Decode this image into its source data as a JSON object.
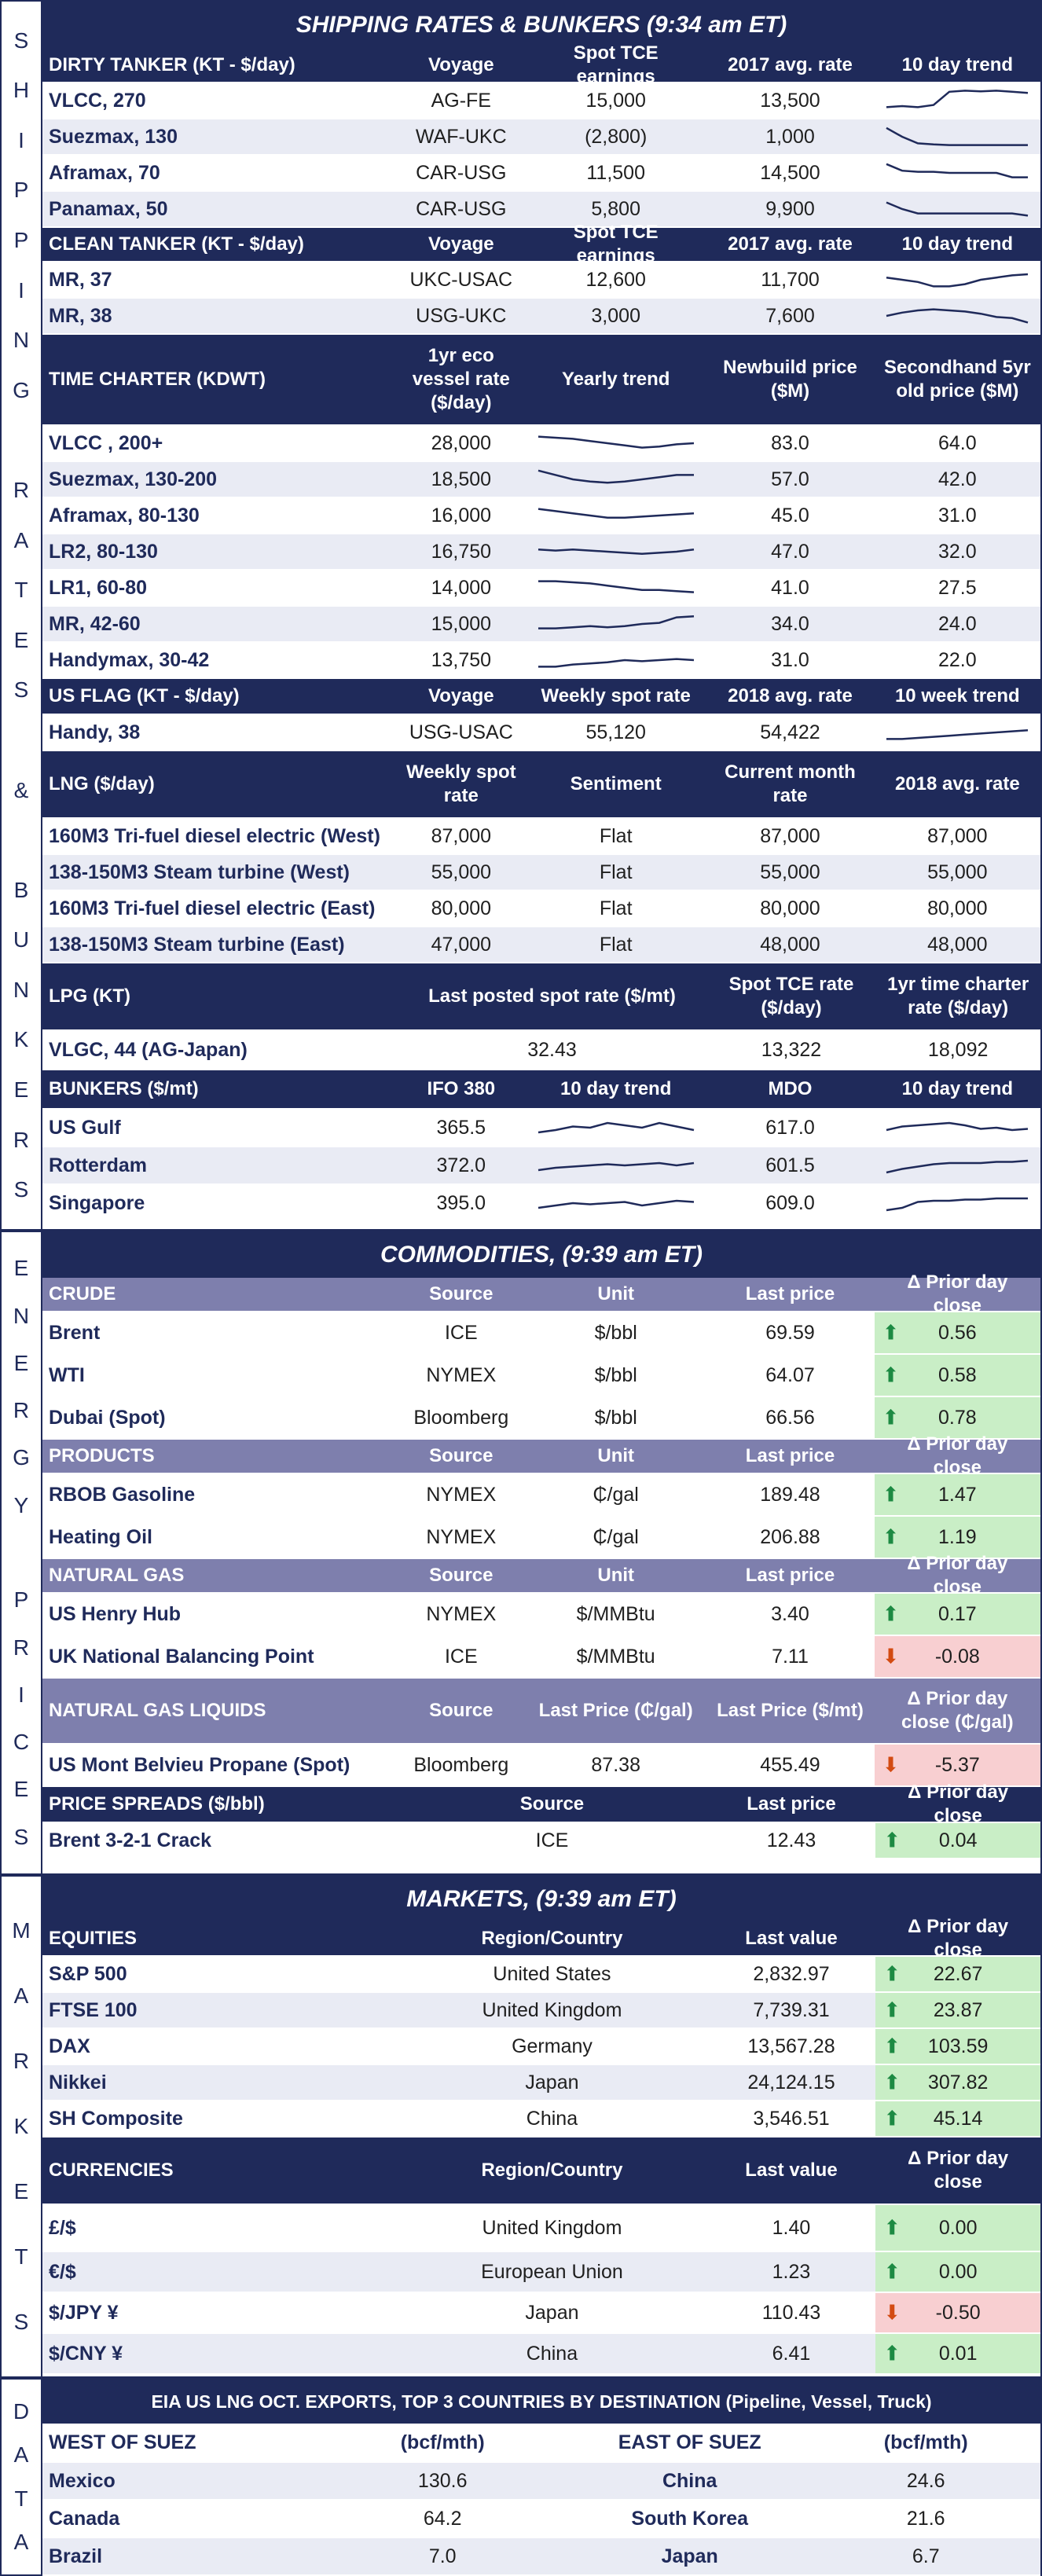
{
  "shipping": {
    "title": "SHIPPING RATES & BUNKERS (9:34 am ET)",
    "side_label": [
      "S",
      "H",
      "I",
      "P",
      "P",
      "I",
      "N",
      "G",
      "",
      "R",
      "A",
      "T",
      "E",
      "S",
      "",
      "&",
      "",
      "B",
      "U",
      "N",
      "K",
      "E",
      "R",
      "S"
    ],
    "dirty": {
      "header": [
        "DIRTY TANKER (KT - $/day)",
        "Voyage",
        "Spot TCE earnings",
        "2017 avg. rate",
        "10 day trend"
      ],
      "rows": [
        {
          "name": "VLCC, 270",
          "voyage": "AG-FE",
          "spot": "15,000",
          "avg": "13,500",
          "trend": [
            0.2,
            0.25,
            0.2,
            0.3,
            0.9,
            0.95,
            0.92,
            0.95,
            0.9,
            0.85
          ]
        },
        {
          "name": "Suezmax, 130",
          "voyage": "WAF-UKC",
          "spot": "(2,800)",
          "avg": "1,000",
          "trend": [
            0.9,
            0.5,
            0.2,
            0.15,
            0.12,
            0.12,
            0.12,
            0.12,
            0.12,
            0.12
          ]
        },
        {
          "name": "Aframax, 70",
          "voyage": "CAR-USG",
          "spot": "11,500",
          "avg": "14,500",
          "trend": [
            0.9,
            0.6,
            0.55,
            0.55,
            0.5,
            0.5,
            0.5,
            0.5,
            0.3,
            0.3
          ]
        },
        {
          "name": "Panamax, 50",
          "voyage": "CAR-USG",
          "spot": "5,800",
          "avg": "9,900",
          "trend": [
            0.8,
            0.5,
            0.3,
            0.3,
            0.3,
            0.3,
            0.3,
            0.3,
            0.3,
            0.2
          ]
        }
      ]
    },
    "clean": {
      "header": [
        "CLEAN TANKER (KT - $/day)",
        "Voyage",
        "Spot TCE earnings",
        "2017 avg. rate",
        "10 day trend"
      ],
      "rows": [
        {
          "name": "MR, 37",
          "voyage": "UKC-USAC",
          "spot": "12,600",
          "avg": "11,700",
          "trend": [
            0.6,
            0.5,
            0.4,
            0.2,
            0.2,
            0.3,
            0.5,
            0.6,
            0.7,
            0.75
          ]
        },
        {
          "name": "MR, 38",
          "voyage": "USG-UKC",
          "spot": "3,000",
          "avg": "7,600",
          "trend": [
            0.5,
            0.65,
            0.75,
            0.8,
            0.75,
            0.7,
            0.6,
            0.45,
            0.4,
            0.2
          ]
        }
      ]
    },
    "timecharter": {
      "header": [
        "TIME CHARTER (KDWT)",
        "1yr eco vessel rate ($/day)",
        "Yearly trend",
        "Newbuild price ($M)",
        "Secondhand 5yr old price ($M)"
      ],
      "rows": [
        {
          "name": "VLCC , 200+",
          "rate": "28,000",
          "newbuild": "83.0",
          "secondhand": "64.0",
          "trend": [
            0.8,
            0.75,
            0.7,
            0.6,
            0.5,
            0.4,
            0.3,
            0.35,
            0.45,
            0.5
          ]
        },
        {
          "name": "Suezmax, 130-200",
          "rate": "18,500",
          "newbuild": "57.0",
          "secondhand": "42.0",
          "trend": [
            0.9,
            0.7,
            0.5,
            0.4,
            0.35,
            0.4,
            0.5,
            0.6,
            0.7,
            0.7
          ]
        },
        {
          "name": "Aframax, 80-130",
          "rate": "16,000",
          "newbuild": "45.0",
          "secondhand": "31.0",
          "trend": [
            0.8,
            0.7,
            0.6,
            0.5,
            0.4,
            0.4,
            0.45,
            0.5,
            0.55,
            0.6
          ]
        },
        {
          "name": "LR2, 80-130",
          "rate": "16,750",
          "newbuild": "47.0",
          "secondhand": "32.0",
          "trend": [
            0.6,
            0.55,
            0.6,
            0.55,
            0.5,
            0.45,
            0.4,
            0.45,
            0.5,
            0.6
          ]
        },
        {
          "name": "LR1, 60-80",
          "rate": "14,000",
          "newbuild": "41.0",
          "secondhand": "27.5",
          "trend": [
            0.8,
            0.8,
            0.75,
            0.7,
            0.6,
            0.5,
            0.4,
            0.4,
            0.35,
            0.3
          ]
        },
        {
          "name": "MR, 42-60",
          "rate": "15,000",
          "newbuild": "34.0",
          "secondhand": "24.0",
          "trend": [
            0.3,
            0.3,
            0.35,
            0.4,
            0.35,
            0.4,
            0.5,
            0.55,
            0.8,
            0.85
          ]
        },
        {
          "name": "Handymax, 30-42",
          "rate": "13,750",
          "newbuild": "31.0",
          "secondhand": "22.0",
          "trend": [
            0.2,
            0.2,
            0.3,
            0.35,
            0.4,
            0.5,
            0.45,
            0.5,
            0.55,
            0.5
          ]
        }
      ]
    },
    "usflag": {
      "header": [
        "US FLAG (KT - $/day)",
        "Voyage",
        "Weekly spot rate",
        "2018 avg. rate",
        "10 week trend"
      ],
      "rows": [
        {
          "name": "Handy, 38",
          "voyage": "USG-USAC",
          "spot": "55,120",
          "avg": "54,422",
          "trend": [
            0.2,
            0.2,
            0.25,
            0.3,
            0.35,
            0.4,
            0.45,
            0.5,
            0.55,
            0.6
          ]
        }
      ]
    },
    "lng": {
      "header": [
        "LNG ($/day)",
        "Weekly spot rate",
        "Sentiment",
        "Current month rate",
        "2018 avg. rate"
      ],
      "rows": [
        {
          "name": "160M3 Tri-fuel diesel electric (West)",
          "spot": "87,000",
          "sentiment": "Flat",
          "current": "87,000",
          "avg": "87,000"
        },
        {
          "name": "138-150M3 Steam turbine (West)",
          "spot": "55,000",
          "sentiment": "Flat",
          "current": "55,000",
          "avg": "55,000"
        },
        {
          "name": "160M3 Tri-fuel diesel electric (East)",
          "spot": "80,000",
          "sentiment": "Flat",
          "current": "80,000",
          "avg": "80,000"
        },
        {
          "name": "138-150M3 Steam turbine (East)",
          "spot": "47,000",
          "sentiment": "Flat",
          "current": "48,000",
          "avg": "48,000"
        }
      ]
    },
    "lpg": {
      "header": [
        "LPG (KT)",
        "Last posted spot rate ($/mt)",
        "Spot TCE rate ($/day)",
        "1yr time charter rate ($/day)"
      ],
      "rows": [
        {
          "name": "VLGC, 44 (AG-Japan)",
          "spot": "32.43",
          "tce": "13,322",
          "tc": "18,092"
        }
      ]
    },
    "bunkers": {
      "header": [
        "BUNKERS ($/mt)",
        "IFO 380",
        "10 day trend",
        "MDO",
        "10 day trend"
      ],
      "rows": [
        {
          "name": "US Gulf",
          "ifo": "365.5",
          "mdo": "617.0",
          "trend1": [
            0.3,
            0.4,
            0.55,
            0.5,
            0.7,
            0.6,
            0.5,
            0.7,
            0.55,
            0.4
          ],
          "trend2": [
            0.4,
            0.55,
            0.6,
            0.65,
            0.7,
            0.6,
            0.45,
            0.5,
            0.4,
            0.45
          ]
        },
        {
          "name": "Rotterdam",
          "ifo": "372.0",
          "mdo": "601.5",
          "trend1": [
            0.3,
            0.4,
            0.45,
            0.5,
            0.55,
            0.5,
            0.55,
            0.6,
            0.5,
            0.6
          ],
          "trend2": [
            0.2,
            0.35,
            0.45,
            0.55,
            0.6,
            0.6,
            0.6,
            0.65,
            0.65,
            0.7
          ]
        },
        {
          "name": "Singapore",
          "ifo": "395.0",
          "mdo": "609.0",
          "trend1": [
            0.3,
            0.4,
            0.5,
            0.45,
            0.5,
            0.55,
            0.4,
            0.5,
            0.6,
            0.55
          ],
          "trend2": [
            0.2,
            0.3,
            0.55,
            0.6,
            0.6,
            0.65,
            0.65,
            0.7,
            0.7,
            0.7
          ]
        }
      ]
    }
  },
  "commodities": {
    "title": "COMMODITIES, (9:39 am ET)",
    "side_label": [
      "E",
      "N",
      "E",
      "R",
      "G",
      "Y",
      "",
      "P",
      "R",
      "I",
      "C",
      "E",
      "S"
    ],
    "crude": {
      "header": [
        "CRUDE",
        "Source",
        "Unit",
        "Last price",
        "Δ Prior day close"
      ],
      "rows": [
        {
          "name": "Brent",
          "source": "ICE",
          "unit": "$/bbl",
          "price": "69.59",
          "change": "0.56",
          "dir": "up"
        },
        {
          "name": "WTI",
          "source": "NYMEX",
          "unit": "$/bbl",
          "price": "64.07",
          "change": "0.58",
          "dir": "up"
        },
        {
          "name": "Dubai (Spot)",
          "source": "Bloomberg",
          "unit": "$/bbl",
          "price": "66.56",
          "change": "0.78",
          "dir": "up"
        }
      ]
    },
    "products": {
      "header": [
        "PRODUCTS",
        "Source",
        "Unit",
        "Last price",
        "Δ Prior day close"
      ],
      "rows": [
        {
          "name": "RBOB Gasoline",
          "source": "NYMEX",
          "unit": "₵/gal",
          "price": "189.48",
          "change": "1.47",
          "dir": "up"
        },
        {
          "name": "Heating Oil",
          "source": "NYMEX",
          "unit": "₵/gal",
          "price": "206.88",
          "change": "1.19",
          "dir": "up"
        }
      ]
    },
    "natgas": {
      "header": [
        "NATURAL GAS",
        "Source",
        "Unit",
        "Last price",
        "Δ Prior day close"
      ],
      "rows": [
        {
          "name": "US Henry Hub",
          "source": "NYMEX",
          "unit": "$/MMBtu",
          "price": "3.40",
          "change": "0.17",
          "dir": "up"
        },
        {
          "name": "UK National Balancing Point",
          "source": "ICE",
          "unit": "$/MMBtu",
          "price": "7.11",
          "change": "-0.08",
          "dir": "dn"
        }
      ]
    },
    "ngl": {
      "header": [
        "NATURAL GAS LIQUIDS",
        "Source",
        "Last Price (₵/gal)",
        "Last Price ($/mt)",
        "Δ Prior day close (₵/gal)"
      ],
      "rows": [
        {
          "name": "US Mont Belvieu Propane (Spot)",
          "source": "Bloomberg",
          "price1": "87.38",
          "price2": "455.49",
          "change": "-5.37",
          "dir": "dn"
        }
      ]
    },
    "spreads": {
      "header": [
        "PRICE SPREADS ($/bbl)",
        "Source",
        "Last price",
        "Δ Prior day close"
      ],
      "rows": [
        {
          "name": "Brent 3-2-1 Crack",
          "source": "ICE",
          "price": "12.43",
          "change": "0.04",
          "dir": "up"
        }
      ]
    }
  },
  "markets": {
    "title": "MARKETS, (9:39 am ET)",
    "side_label": [
      "M",
      "A",
      "R",
      "K",
      "E",
      "T",
      "S"
    ],
    "equities": {
      "header": [
        "EQUITIES",
        "Region/Country",
        "Last value",
        "Δ Prior day close"
      ],
      "rows": [
        {
          "name": "S&P 500",
          "region": "United States",
          "value": "2,832.97",
          "change": "22.67",
          "dir": "up"
        },
        {
          "name": "FTSE 100",
          "region": "United Kingdom",
          "value": "7,739.31",
          "change": "23.87",
          "dir": "up"
        },
        {
          "name": "DAX",
          "region": "Germany",
          "value": "13,567.28",
          "change": "103.59",
          "dir": "up"
        },
        {
          "name": "Nikkei",
          "region": "Japan",
          "value": "24,124.15",
          "change": "307.82",
          "dir": "up"
        },
        {
          "name": "SH Composite",
          "region": "China",
          "value": "3,546.51",
          "change": "45.14",
          "dir": "up"
        }
      ]
    },
    "currencies": {
      "header": [
        "CURRENCIES",
        "Region/Country",
        "Last value",
        "Δ Prior day close"
      ],
      "rows": [
        {
          "name": "£/$",
          "region": "United Kingdom",
          "value": "1.40",
          "change": "0.00",
          "dir": "up"
        },
        {
          "name": "€/$",
          "region": "European Union",
          "value": "1.23",
          "change": "0.00",
          "dir": "up"
        },
        {
          "name": "$/JPY ¥",
          "region": "Japan",
          "value": "110.43",
          "change": "-0.50",
          "dir": "dn"
        },
        {
          "name": "$/CNY ¥",
          "region": "China",
          "value": "6.41",
          "change": "0.01",
          "dir": "up"
        }
      ]
    }
  },
  "data": {
    "title": "EIA US LNG OCT. EXPORTS, TOP 3 COUNTRIES BY DESTINATION (Pipeline, Vessel, Truck)",
    "side_label": [
      "D",
      "A",
      "T",
      "A"
    ],
    "header": [
      "WEST OF SUEZ",
      "(bcf/mth)",
      "EAST OF SUEZ",
      "(bcf/mth)"
    ],
    "rows": [
      {
        "west": "Mexico",
        "west_val": "130.6",
        "east": "China",
        "east_val": "24.6"
      },
      {
        "west": "Canada",
        "west_val": "64.2",
        "east": "South Korea",
        "east_val": "21.6"
      },
      {
        "west": "Brazil",
        "west_val": "7.0",
        "east": "Japan",
        "east_val": "6.7"
      }
    ]
  },
  "colors": {
    "navy": "#1f2a5a",
    "lavender": "#7e7fad",
    "alt_row": "#e9ebf4",
    "up_bg": "#c9eec6",
    "down_bg": "#f8cfd1",
    "up_arrow": "#1d8a43",
    "down_arrow": "#d34b12"
  }
}
